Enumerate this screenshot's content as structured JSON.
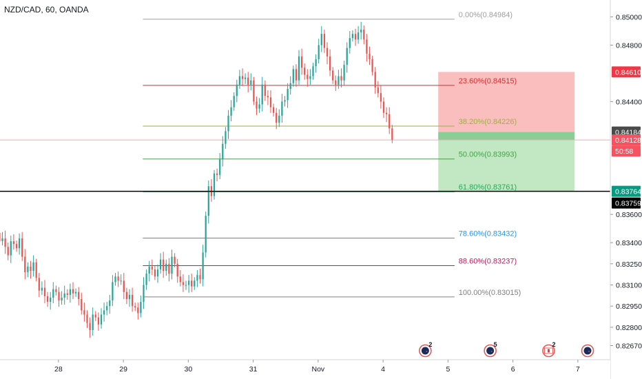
{
  "header": {
    "title": "NZD/CAD, 60, OANDA"
  },
  "colors": {
    "up": "#26a69a",
    "down": "#ef5350",
    "axis_text": "#131722",
    "short_box_red": "#f9b3b3",
    "short_box_green": "#b7e4b9",
    "price_line": "#f7a9b3"
  },
  "chart_data": {
    "type": "candlestick",
    "symbol": "NZD/CAD",
    "interval": "60",
    "source": "OANDA",
    "ylim": [
      0.8257,
      0.8512
    ],
    "y_ticks": [
      "0.85000",
      "0.84800",
      "0.84610",
      "0.84400",
      "0.84184",
      "0.84128",
      "0.83764",
      "0.83759",
      "0.83600",
      "0.83400",
      "0.83250",
      "0.83100",
      "0.82950",
      "0.82800",
      "0.82670"
    ],
    "x_ticks": [
      "28",
      "29",
      "30",
      "31",
      "Nov",
      "4",
      "5",
      "6",
      "7"
    ],
    "x_tick_pos": [
      0,
      1,
      2,
      3,
      4,
      5,
      6,
      7,
      8
    ],
    "x_range": [
      -0.9,
      8.5
    ],
    "candle_start": -0.95,
    "candle_step": 0.0435,
    "closes": [
      0.8347,
      0.8341,
      0.8343,
      0.8337,
      0.8331,
      0.8341,
      0.8339,
      0.8336,
      0.8343,
      0.833,
      0.8319,
      0.8323,
      0.832,
      0.8326,
      0.8315,
      0.8306,
      0.8308,
      0.8302,
      0.8298,
      0.8301,
      0.8307,
      0.8305,
      0.8299,
      0.8301,
      0.8304,
      0.8303,
      0.8307,
      0.8304,
      0.8305,
      0.83,
      0.8292,
      0.8289,
      0.8283,
      0.8278,
      0.8289,
      0.8287,
      0.8282,
      0.8289,
      0.8292,
      0.8295,
      0.8299,
      0.8312,
      0.8316,
      0.8313,
      0.8313,
      0.8305,
      0.83,
      0.8303,
      0.8295,
      0.8294,
      0.829,
      0.8298,
      0.831,
      0.8318,
      0.8323,
      0.8321,
      0.8316,
      0.8321,
      0.8328,
      0.832,
      0.8325,
      0.8318,
      0.833,
      0.8325,
      0.8316,
      0.8312,
      0.831,
      0.831,
      0.8313,
      0.8309,
      0.8313,
      0.8317,
      0.8314,
      0.8333,
      0.8359,
      0.838,
      0.8373,
      0.8389,
      0.8388,
      0.8399,
      0.841,
      0.8419,
      0.843,
      0.8436,
      0.8444,
      0.8452,
      0.8458,
      0.8456,
      0.8457,
      0.8452,
      0.8455,
      0.844,
      0.8435,
      0.8438,
      0.8452,
      0.8444,
      0.8443,
      0.8436,
      0.8432,
      0.8425,
      0.843,
      0.844,
      0.8441,
      0.8449,
      0.8453,
      0.8463,
      0.8455,
      0.8472,
      0.8464,
      0.8459,
      0.8456,
      0.8458,
      0.8465,
      0.847,
      0.848,
      0.8488,
      0.8478,
      0.8472,
      0.8462,
      0.8455,
      0.8452,
      0.8458,
      0.8455,
      0.8466,
      0.8478,
      0.8485,
      0.8488,
      0.8484,
      0.8489,
      0.8491,
      0.8484,
      0.8474,
      0.847,
      0.8461,
      0.845,
      0.8446,
      0.844,
      0.8432,
      0.8431,
      0.8421,
      0.8413
    ],
    "horizontal_line": 0.83764,
    "current_price_line": 0.84128,
    "fibonacci": [
      {
        "label": "0.00%(0.84984)",
        "price": 0.84984,
        "color": "#9e9e9e"
      },
      {
        "label": "23.60%(0.84515)",
        "price": 0.84515,
        "color": "#d32f2f"
      },
      {
        "label": "38.20%(0.84226)",
        "price": 0.84226,
        "color": "#9cb23a"
      },
      {
        "label": "50.00%(0.83993)",
        "price": 0.83993,
        "color": "#43a047"
      },
      {
        "label": "61.80%(0.83761)",
        "price": 0.83761,
        "color": "#26a65b"
      },
      {
        "label": "78.60%(0.83432)",
        "price": 0.83432,
        "color": "#2196f3"
      },
      {
        "label": "88.60%(0.83237)",
        "price": 0.83237,
        "color": "#c2185b"
      },
      {
        "label": "100.00%(0.83015)",
        "price": 0.83015,
        "color": "#808080"
      }
    ],
    "fib_x_range": [
      1.3,
      6.1
    ],
    "position": {
      "type": "short",
      "entry": 0.84184,
      "stop": 0.8461,
      "target": 0.83764,
      "x_from": 5.85,
      "x_to": 7.95
    },
    "price_badges": [
      {
        "text": "0.84610",
        "price": 0.8461,
        "bg": "#f23645"
      },
      {
        "text": "0.84184",
        "price": 0.84184,
        "bg": "#4a4a4a"
      },
      {
        "text": "0.84128",
        "price": 0.84128,
        "bg": "#f7525f"
      },
      {
        "text": "50:58",
        "price": 0.84128,
        "bg": "#f7525f",
        "offset": 1
      },
      {
        "text": "0.83764",
        "price": 0.83764,
        "bg": "#089981"
      },
      {
        "text": "0.83759",
        "price": 0.83759,
        "bg": "#000000",
        "offset": 1
      }
    ],
    "events": [
      {
        "x": 5.65,
        "flag": "nz",
        "count": "2"
      },
      {
        "x": 6.65,
        "flag": "nz",
        "count": "5"
      },
      {
        "x": 7.55,
        "flag": "ca",
        "count": "2"
      },
      {
        "x": 8.15,
        "flag": "nz",
        "count": ""
      }
    ]
  }
}
